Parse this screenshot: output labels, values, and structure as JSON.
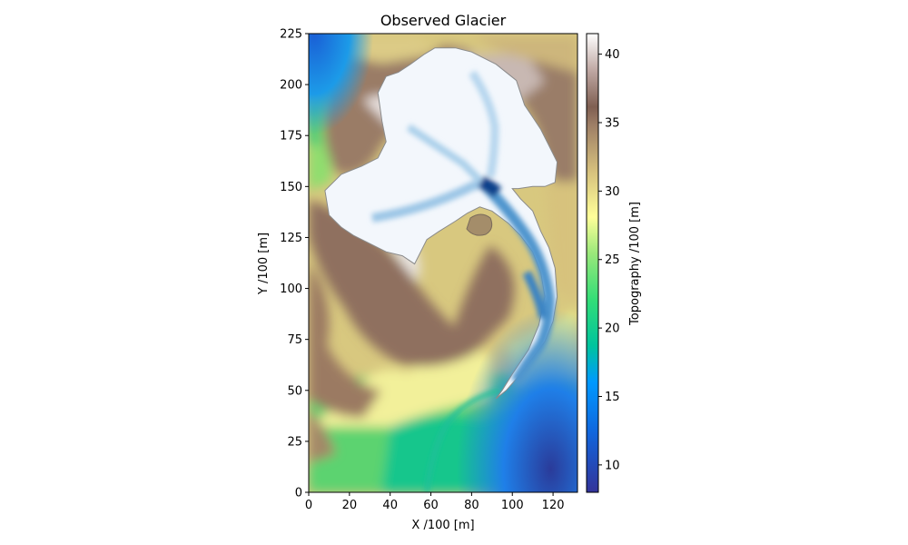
{
  "chart_data": {
    "type": "heatmap",
    "title": "Observed Glacier",
    "xlabel": "X /100 [m]",
    "ylabel": "Y /100 [m]",
    "xlim": [
      0,
      132
    ],
    "ylim": [
      0,
      225
    ],
    "xticks": [
      "0",
      "20",
      "40",
      "60",
      "80",
      "100",
      "120"
    ],
    "yticks": [
      "0",
      "25",
      "50",
      "75",
      "100",
      "125",
      "150",
      "175",
      "200",
      "225"
    ],
    "colorbar": {
      "label": "Topography /100 [m]",
      "range": [
        8,
        41.5
      ],
      "ticks": [
        "10",
        "15",
        "20",
        "25",
        "30",
        "35",
        "40"
      ],
      "colormap": "terrain"
    },
    "glacier_overlay": {
      "colormap": "Blues",
      "outline": [
        [
          57,
          215
        ],
        [
          62,
          218
        ],
        [
          72,
          218
        ],
        [
          80,
          216
        ],
        [
          92,
          210
        ],
        [
          102,
          202
        ],
        [
          106,
          190
        ],
        [
          110,
          184
        ],
        [
          114,
          178
        ],
        [
          118,
          170
        ],
        [
          122,
          162
        ],
        [
          121,
          152
        ],
        [
          116,
          150
        ],
        [
          110,
          150
        ],
        [
          103,
          149
        ],
        [
          100,
          149
        ],
        [
          104,
          144
        ],
        [
          110,
          138
        ],
        [
          114,
          128
        ],
        [
          118,
          120
        ],
        [
          121,
          110
        ],
        [
          122,
          96
        ],
        [
          120,
          84
        ],
        [
          116,
          74
        ],
        [
          110,
          66
        ],
        [
          104,
          58
        ],
        [
          97,
          50
        ],
        [
          92,
          46
        ],
        [
          95,
          50
        ],
        [
          100,
          58
        ],
        [
          108,
          70
        ],
        [
          113,
          82
        ],
        [
          116,
          96
        ],
        [
          114,
          108
        ],
        [
          110,
          118
        ],
        [
          104,
          126
        ],
        [
          98,
          132
        ],
        [
          90,
          138
        ],
        [
          84,
          140
        ],
        [
          78,
          137
        ],
        [
          72,
          133
        ],
        [
          64,
          128
        ],
        [
          58,
          124
        ],
        [
          52,
          112
        ],
        [
          46,
          116
        ],
        [
          38,
          118
        ],
        [
          30,
          122
        ],
        [
          22,
          126
        ],
        [
          16,
          130
        ],
        [
          10,
          136
        ],
        [
          8,
          148
        ],
        [
          16,
          156
        ],
        [
          26,
          160
        ],
        [
          34,
          164
        ],
        [
          38,
          172
        ],
        [
          36,
          182
        ],
        [
          34,
          196
        ],
        [
          38,
          204
        ],
        [
          44,
          206
        ],
        [
          50,
          210
        ]
      ]
    }
  }
}
